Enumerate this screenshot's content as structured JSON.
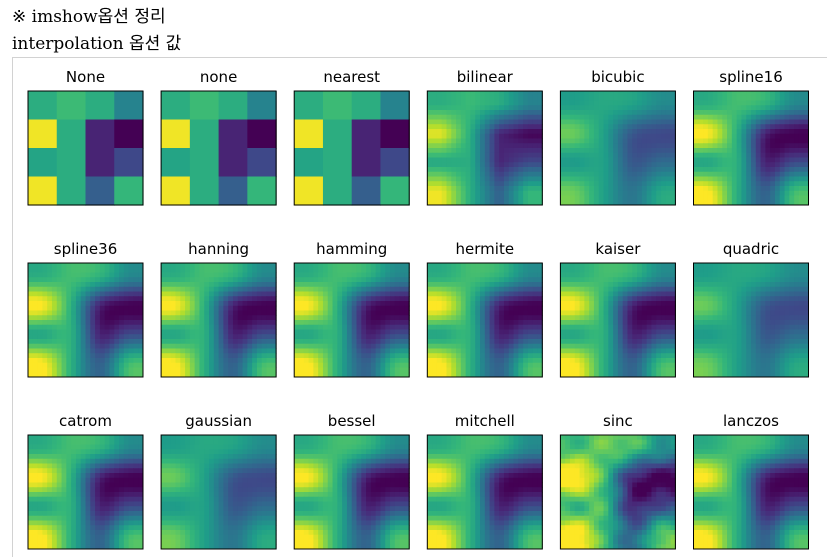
{
  "doc": {
    "line1": "※ imshow옵션 정리",
    "line2": "interpolation 옵션 값"
  },
  "chart_data": {
    "type": "heatmap",
    "grid": {
      "rows": 3,
      "columns": 6
    },
    "colormap": "viridis",
    "panels": [
      "None",
      "none",
      "nearest",
      "bilinear",
      "bicubic",
      "spline16",
      "spline36",
      "hanning",
      "hamming",
      "hermite",
      "kaiser",
      "quadric",
      "catrom",
      "gaussian",
      "bessel",
      "mitchell",
      "sinc",
      "lanczos"
    ],
    "values": [
      [
        0.62,
        0.68,
        0.62,
        0.45
      ],
      [
        0.98,
        0.62,
        0.1,
        0.0
      ],
      [
        0.58,
        0.62,
        0.1,
        0.22
      ],
      [
        0.98,
        0.62,
        0.3,
        0.66
      ]
    ],
    "styles": {
      "None": "nearest",
      "none": "nearest",
      "nearest": "nearest",
      "bilinear": "smooth",
      "bicubic": "soft",
      "spline16": "sharp",
      "spline36": "sharp",
      "hanning": "sharp",
      "hamming": "sharp",
      "hermite": "sharp",
      "kaiser": "sharp",
      "quadric": "soft",
      "catrom": "sharp",
      "gaussian": "soft",
      "bessel": "sharp",
      "mitchell": "sharp",
      "sinc": "ring",
      "lanczos": "sharp"
    }
  }
}
